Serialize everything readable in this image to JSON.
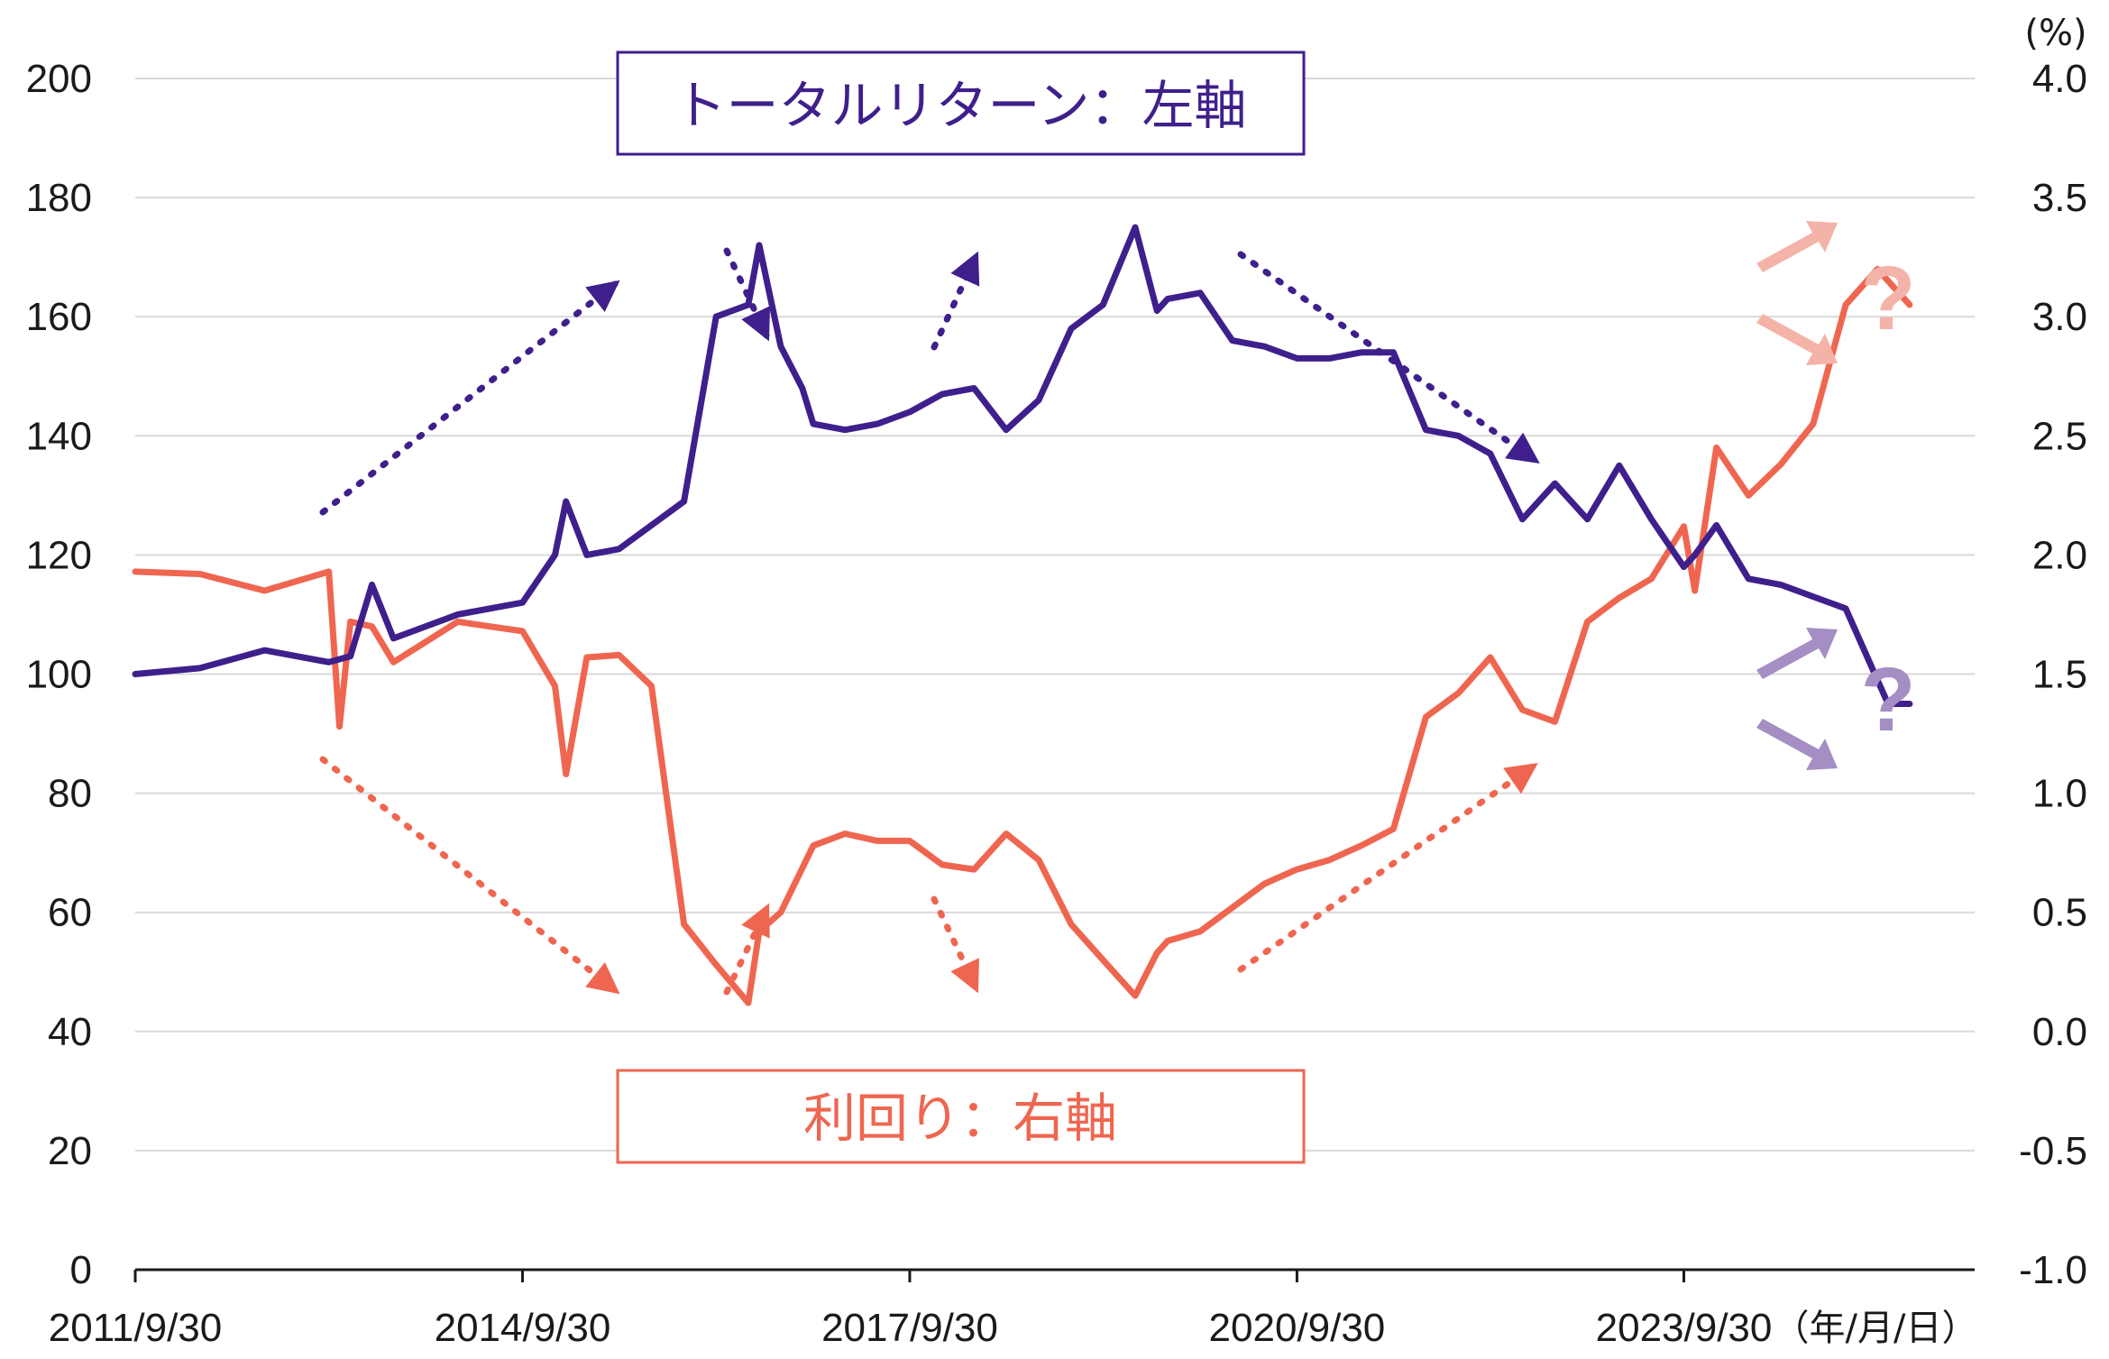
{
  "chart_data": {
    "type": "line",
    "colors": {
      "total_return": "#3f1f8c",
      "yield": "#ef6650",
      "grid": "#d9d9d9"
    },
    "left_axis": {
      "ticks": [
        "0",
        "20",
        "40",
        "60",
        "80",
        "100",
        "120",
        "140",
        "160",
        "180",
        "200"
      ],
      "ylim": [
        0,
        200
      ]
    },
    "right_axis": {
      "ticks": [
        "-1.0",
        "-0.5",
        "0.0",
        "0.5",
        "1.0",
        "1.5",
        "2.0",
        "2.5",
        "3.0",
        "3.5",
        "4.0"
      ],
      "ylim": [
        -1.0,
        4.0
      ],
      "unit": "(%)"
    },
    "x_axis": {
      "ticks": [
        "2011/9/30",
        "2014/9/30",
        "2017/9/30",
        "2020/9/30",
        "2023/9/30"
      ],
      "unit": "（年/月/日）",
      "range": [
        "2011/9/30",
        "2025/12/31"
      ]
    },
    "series": [
      {
        "name": "トータルリターン：左軸",
        "axis": "left",
        "x": [
          "2011/9/30",
          "2012/3/31",
          "2012/9/30",
          "2013/3/31",
          "2013/5/31",
          "2013/7/31",
          "2013/9/30",
          "2014/3/31",
          "2014/6/30",
          "2014/9/30",
          "2014/12/31",
          "2015/1/31",
          "2015/3/31",
          "2015/6/30",
          "2015/9/30",
          "2015/12/31",
          "2016/3/31",
          "2016/6/30",
          "2016/7/31",
          "2016/9/30",
          "2016/11/30",
          "2016/12/31",
          "2017/3/31",
          "2017/6/30",
          "2017/9/30",
          "2017/12/31",
          "2018/3/31",
          "2018/6/30",
          "2018/9/30",
          "2018/12/31",
          "2019/3/31",
          "2019/6/30",
          "2019/8/31",
          "2019/9/30",
          "2019/12/31",
          "2020/3/31",
          "2020/6/30",
          "2020/9/30",
          "2020/12/31",
          "2021/3/31",
          "2021/6/30",
          "2021/9/30",
          "2021/12/31",
          "2022/3/31",
          "2022/6/30",
          "2022/9/30",
          "2022/12/31",
          "2023/3/31",
          "2023/6/30",
          "2023/9/30",
          "2023/10/31",
          "2023/12/31",
          "2024/3/31",
          "2024/6/30",
          "2024/9/30",
          "2024/12/31",
          "2025/3/31",
          "2025/4/30",
          "2025/6/30"
        ],
        "values": [
          100,
          101,
          104,
          102,
          103,
          115,
          106,
          110,
          111,
          112,
          120,
          129,
          120,
          121,
          125,
          129,
          160,
          162,
          172,
          155,
          148,
          142,
          141,
          142,
          144,
          147,
          148,
          141,
          146,
          158,
          162,
          175,
          161,
          163,
          164,
          156,
          155,
          153,
          153,
          154,
          154,
          141,
          140,
          137,
          126,
          132,
          126,
          135,
          126,
          118,
          120,
          125,
          116,
          115,
          113,
          111,
          99,
          95,
          95
        ]
      },
      {
        "name": "利回り：右軸",
        "axis": "right",
        "x": [
          "2011/9/30",
          "2012/3/31",
          "2012/9/30",
          "2013/3/31",
          "2013/4/30",
          "2013/5/31",
          "2013/7/31",
          "2013/9/30",
          "2014/3/31",
          "2014/6/30",
          "2014/9/30",
          "2014/12/31",
          "2015/1/31",
          "2015/3/31",
          "2015/6/30",
          "2015/9/30",
          "2015/12/31",
          "2016/3/31",
          "2016/6/30",
          "2016/7/31",
          "2016/9/30",
          "2016/12/31",
          "2017/3/31",
          "2017/6/30",
          "2017/9/30",
          "2017/12/31",
          "2018/3/31",
          "2018/6/30",
          "2018/9/30",
          "2018/12/31",
          "2019/3/31",
          "2019/6/30",
          "2019/8/31",
          "2019/9/30",
          "2019/12/31",
          "2020/3/31",
          "2020/6/30",
          "2020/9/30",
          "2020/12/31",
          "2021/3/31",
          "2021/6/30",
          "2021/9/30",
          "2021/12/31",
          "2022/3/31",
          "2022/6/30",
          "2022/9/30",
          "2022/12/31",
          "2023/3/31",
          "2023/6/30",
          "2023/9/30",
          "2023/10/31",
          "2023/12/31",
          "2024/3/31",
          "2024/6/30",
          "2024/9/30",
          "2024/12/31",
          "2025/3/31",
          "2025/4/30",
          "2025/6/30"
        ],
        "values": [
          1.93,
          1.92,
          1.85,
          1.93,
          1.28,
          1.72,
          1.7,
          1.55,
          1.72,
          1.7,
          1.68,
          1.45,
          1.08,
          1.57,
          1.58,
          1.45,
          0.45,
          0.28,
          0.12,
          0.42,
          0.5,
          0.78,
          0.83,
          0.8,
          0.8,
          0.7,
          0.68,
          0.83,
          0.72,
          0.45,
          0.3,
          0.15,
          0.33,
          0.38,
          0.42,
          0.52,
          0.62,
          0.68,
          0.72,
          0.78,
          0.85,
          1.32,
          1.42,
          1.57,
          1.35,
          1.3,
          1.72,
          1.82,
          1.9,
          2.12,
          1.85,
          2.45,
          2.25,
          2.38,
          2.55,
          3.05,
          3.2,
          3.15,
          3.05
        ]
      }
    ]
  },
  "labels": {
    "total_return": "トータルリターン：左軸",
    "yield": "利回り：右軸",
    "question_mark": "?"
  }
}
